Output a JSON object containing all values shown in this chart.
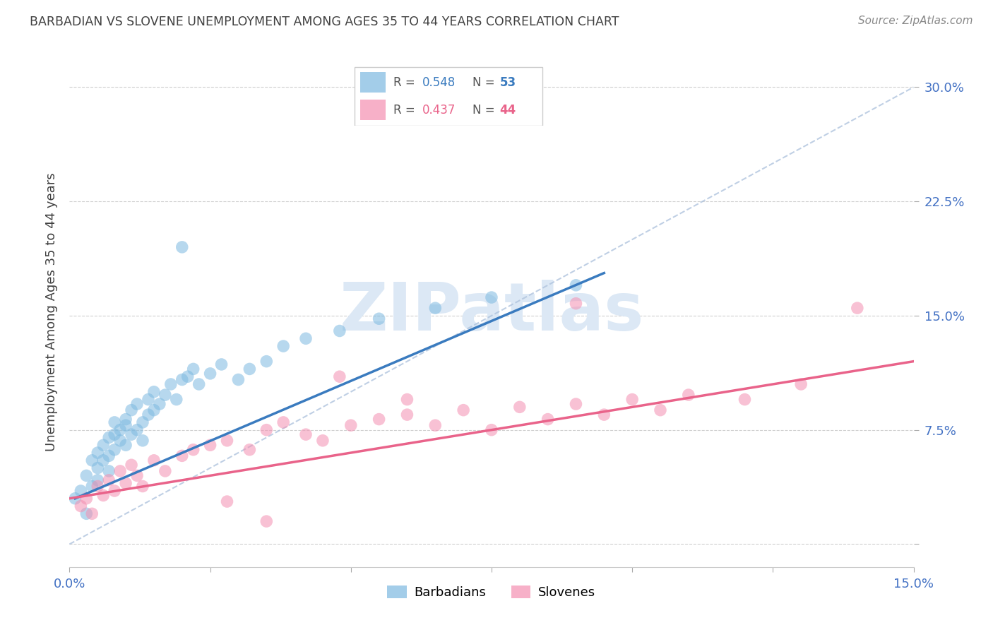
{
  "title": "BARBADIAN VS SLOVENE UNEMPLOYMENT AMONG AGES 35 TO 44 YEARS CORRELATION CHART",
  "source": "Source: ZipAtlas.com",
  "ylabel": "Unemployment Among Ages 35 to 44 years",
  "xlim": [
    0,
    0.15
  ],
  "ylim": [
    -0.015,
    0.32
  ],
  "xticks": [
    0.0,
    0.025,
    0.05,
    0.075,
    0.1,
    0.125,
    0.15
  ],
  "xticklabels": [
    "0.0%",
    "",
    "",
    "",
    "",
    "",
    "15.0%"
  ],
  "yticks": [
    0.0,
    0.075,
    0.15,
    0.225,
    0.3
  ],
  "yticklabels": [
    "",
    "7.5%",
    "15.0%",
    "22.5%",
    "30.0%"
  ],
  "barbadian_R": 0.548,
  "barbadian_N": 53,
  "slovene_R": 0.437,
  "slovene_N": 44,
  "barbadian_color": "#7db9e0",
  "slovene_color": "#f48fb1",
  "barbadian_line_color": "#3a7bbf",
  "slovene_line_color": "#e9638a",
  "background_color": "#ffffff",
  "grid_color": "#d0d0d0",
  "title_color": "#404040",
  "axis_label_color": "#404040",
  "tick_label_color": "#4472c4",
  "legend_label_barbadian": "Barbadians",
  "legend_label_slovene": "Slovenes",
  "watermark_color": "#dce8f5",
  "ref_line_color": "#b0c4de",
  "barbadian_x": [
    0.001,
    0.002,
    0.003,
    0.003,
    0.004,
    0.004,
    0.005,
    0.005,
    0.005,
    0.006,
    0.006,
    0.007,
    0.007,
    0.007,
    0.008,
    0.008,
    0.008,
    0.009,
    0.009,
    0.01,
    0.01,
    0.01,
    0.011,
    0.011,
    0.012,
    0.012,
    0.013,
    0.013,
    0.014,
    0.014,
    0.015,
    0.015,
    0.016,
    0.017,
    0.018,
    0.019,
    0.02,
    0.021,
    0.022,
    0.023,
    0.025,
    0.027,
    0.03,
    0.032,
    0.035,
    0.038,
    0.042,
    0.048,
    0.055,
    0.065,
    0.075,
    0.09,
    0.02
  ],
  "barbadian_y": [
    0.03,
    0.035,
    0.02,
    0.045,
    0.038,
    0.055,
    0.042,
    0.06,
    0.05,
    0.065,
    0.055,
    0.058,
    0.07,
    0.048,
    0.062,
    0.072,
    0.08,
    0.068,
    0.075,
    0.065,
    0.082,
    0.078,
    0.072,
    0.088,
    0.075,
    0.092,
    0.08,
    0.068,
    0.085,
    0.095,
    0.088,
    0.1,
    0.092,
    0.098,
    0.105,
    0.095,
    0.108,
    0.11,
    0.115,
    0.105,
    0.112,
    0.118,
    0.108,
    0.115,
    0.12,
    0.13,
    0.135,
    0.14,
    0.148,
    0.155,
    0.162,
    0.17,
    0.195
  ],
  "slovene_x": [
    0.002,
    0.003,
    0.004,
    0.005,
    0.006,
    0.007,
    0.008,
    0.009,
    0.01,
    0.011,
    0.012,
    0.013,
    0.015,
    0.017,
    0.02,
    0.022,
    0.025,
    0.028,
    0.032,
    0.035,
    0.038,
    0.042,
    0.045,
    0.05,
    0.055,
    0.06,
    0.065,
    0.07,
    0.075,
    0.08,
    0.085,
    0.09,
    0.095,
    0.1,
    0.105,
    0.11,
    0.12,
    0.13,
    0.14,
    0.048,
    0.028,
    0.035,
    0.06,
    0.09
  ],
  "slovene_y": [
    0.025,
    0.03,
    0.02,
    0.038,
    0.032,
    0.042,
    0.035,
    0.048,
    0.04,
    0.052,
    0.045,
    0.038,
    0.055,
    0.048,
    0.058,
    0.062,
    0.065,
    0.068,
    0.062,
    0.075,
    0.08,
    0.072,
    0.068,
    0.078,
    0.082,
    0.085,
    0.078,
    0.088,
    0.075,
    0.09,
    0.082,
    0.092,
    0.085,
    0.095,
    0.088,
    0.098,
    0.095,
    0.105,
    0.155,
    0.11,
    0.028,
    0.015,
    0.095,
    0.158
  ],
  "barbadian_line_x": [
    0.001,
    0.095
  ],
  "barbadian_line_y": [
    0.03,
    0.178
  ],
  "slovene_line_x": [
    0.0,
    0.15
  ],
  "slovene_line_y": [
    0.03,
    0.12
  ]
}
